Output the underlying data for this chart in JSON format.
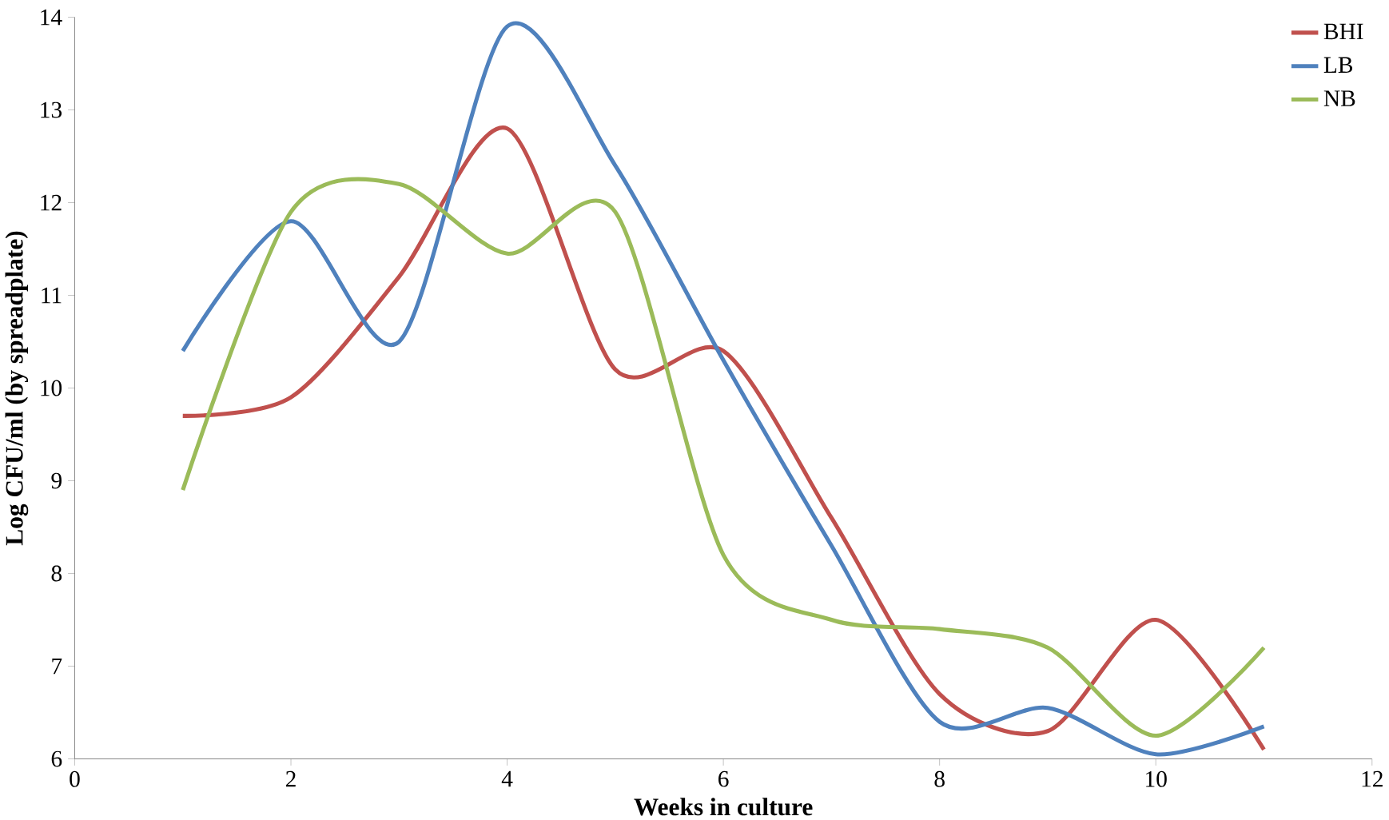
{
  "chart_data": {
    "type": "line",
    "xlabel": "Weeks in culture",
    "ylabel": "Log CFU/ml (by spreadplate)",
    "x": [
      1,
      2,
      3,
      4,
      5,
      6,
      7,
      8,
      9,
      10,
      11
    ],
    "series": [
      {
        "name": "BHI",
        "color": "#c0504d",
        "values": [
          9.7,
          9.9,
          11.2,
          12.8,
          10.2,
          10.4,
          8.6,
          6.7,
          6.3,
          7.5,
          6.1
        ]
      },
      {
        "name": "LB",
        "color": "#4f81bd",
        "values": [
          10.4,
          11.8,
          10.5,
          13.9,
          12.4,
          10.3,
          8.3,
          6.4,
          6.55,
          6.05,
          6.35
        ]
      },
      {
        "name": "NB",
        "color": "#9bbb59",
        "values": [
          8.9,
          11.9,
          12.2,
          11.45,
          11.9,
          8.2,
          7.5,
          7.4,
          7.2,
          6.25,
          7.2
        ]
      }
    ],
    "xlim": [
      0,
      12
    ],
    "xticks": [
      0,
      2,
      4,
      6,
      8,
      10,
      12
    ],
    "ylim": [
      6,
      14
    ],
    "yticks": [
      6,
      7,
      8,
      9,
      10,
      11,
      12,
      13,
      14
    ],
    "grid": false,
    "legend": "top right",
    "marker": "none",
    "line_style": "solid"
  }
}
